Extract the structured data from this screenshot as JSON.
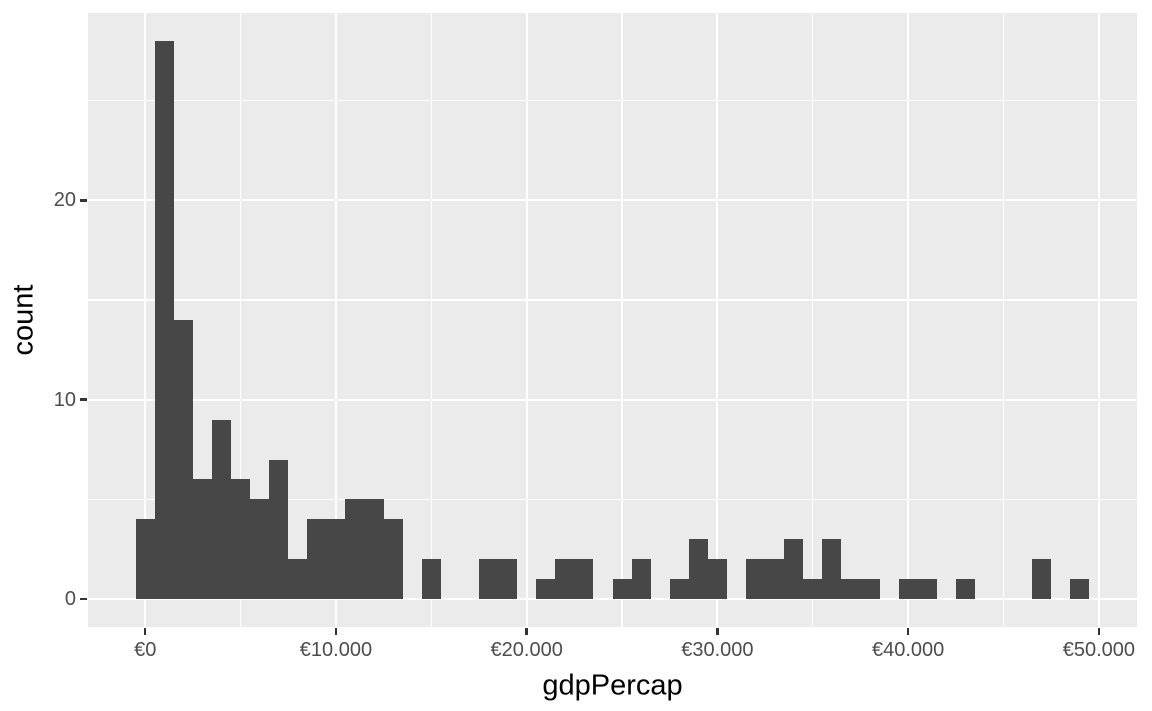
{
  "chart_data": {
    "type": "bar",
    "subtype": "histogram",
    "title": "",
    "xlabel": "gdpPercap",
    "ylabel": "count",
    "bin_width": 1000,
    "bin_centers": [
      0,
      1000,
      2000,
      3000,
      4000,
      5000,
      6000,
      7000,
      8000,
      9000,
      10000,
      11000,
      12000,
      13000,
      14000,
      15000,
      16000,
      17000,
      18000,
      19000,
      20000,
      21000,
      22000,
      23000,
      24000,
      25000,
      26000,
      27000,
      28000,
      29000,
      30000,
      31000,
      32000,
      33000,
      34000,
      35000,
      36000,
      37000,
      38000,
      39000,
      40000,
      41000,
      42000,
      43000,
      44000,
      45000,
      46000,
      47000,
      48000,
      49000
    ],
    "counts": [
      4,
      28,
      14,
      6,
      9,
      6,
      5,
      7,
      2,
      4,
      4,
      5,
      5,
      4,
      0,
      2,
      0,
      0,
      2,
      2,
      0,
      1,
      2,
      2,
      0,
      1,
      2,
      0,
      1,
      3,
      2,
      0,
      2,
      2,
      3,
      1,
      3,
      1,
      1,
      0,
      1,
      1,
      0,
      1,
      0,
      0,
      0,
      2,
      0,
      1
    ],
    "total_count": 142,
    "xlim": [
      -3000,
      52000
    ],
    "ylim": [
      -1.4,
      29.4
    ],
    "x_major_ticks": [
      0,
      10000,
      20000,
      30000,
      40000,
      50000
    ],
    "x_tick_labels": [
      "€0",
      "€10.000",
      "€20.000",
      "€30.000",
      "€40.000",
      "€50.000"
    ],
    "x_minor_ticks": [
      5000,
      15000,
      25000,
      35000,
      45000
    ],
    "y_major_ticks": [
      0,
      10,
      20
    ],
    "y_tick_labels": [
      "0",
      "10",
      "20"
    ],
    "y_minor_ticks": [
      5,
      15,
      25
    ],
    "grid": "white major and minor gridlines on grey panel",
    "legend_position": "none"
  },
  "colors": {
    "figure_background": "#FFFFFF",
    "panel_background": "#EBEBEB",
    "gridline": "#FFFFFF",
    "bar_fill": "#474747",
    "tick_label": "#4D4D4D",
    "axis_title": "#000000",
    "tick_mark": "#333333"
  }
}
